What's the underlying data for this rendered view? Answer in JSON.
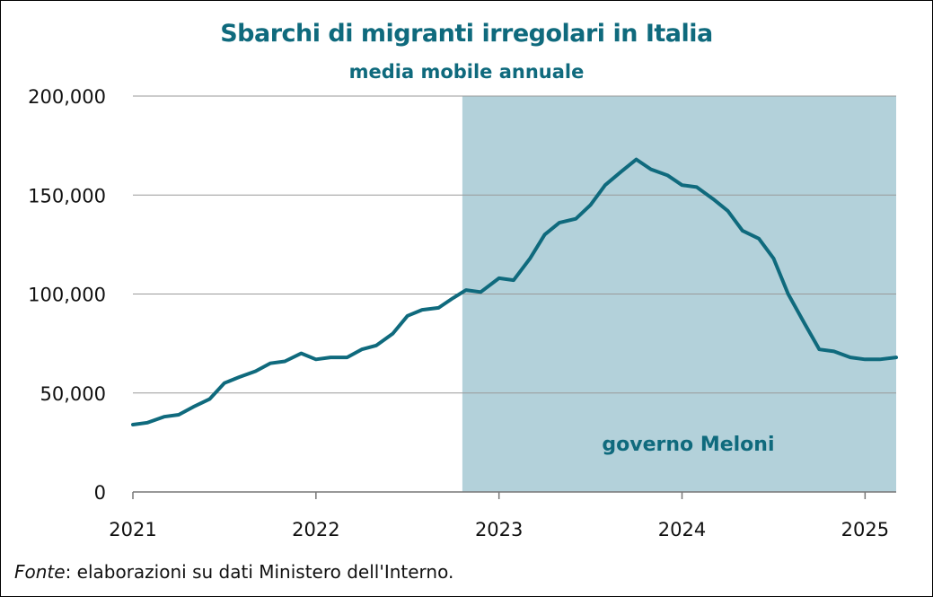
{
  "chart_data": {
    "type": "line",
    "title": "Sbarchi di migranti irregolari in Italia",
    "subtitle": "media mobile annuale",
    "ylim": [
      0,
      200000
    ],
    "y_ticks": [
      "0",
      "50,000",
      "100,000",
      "150,000",
      "200,000"
    ],
    "y_tick_values": [
      0,
      50000,
      100000,
      150000,
      200000
    ],
    "x_ticks": [
      "2021",
      "2022",
      "2023",
      "2024",
      "2025"
    ],
    "x_tick_values": [
      2021,
      2022,
      2023,
      2024,
      2025
    ],
    "xlim": [
      2021,
      2025.17
    ],
    "grid": true,
    "series": [
      {
        "color": "#0f6a7d",
        "x": [
          2021.0,
          2021.08,
          2021.17,
          2021.25,
          2021.33,
          2021.42,
          2021.5,
          2021.58,
          2021.67,
          2021.75,
          2021.83,
          2021.92,
          2022.0,
          2022.08,
          2022.17,
          2022.25,
          2022.33,
          2022.42,
          2022.5,
          2022.58,
          2022.67,
          2022.75,
          2022.82,
          2022.9,
          2023.0,
          2023.08,
          2023.17,
          2023.25,
          2023.33,
          2023.42,
          2023.5,
          2023.58,
          2023.67,
          2023.75,
          2023.83,
          2023.92,
          2024.0,
          2024.08,
          2024.17,
          2024.25,
          2024.33,
          2024.42,
          2024.5,
          2024.58,
          2024.67,
          2024.75,
          2024.83,
          2024.92,
          2025.0,
          2025.08,
          2025.17
        ],
        "values": [
          34000,
          35000,
          38000,
          39000,
          43000,
          47000,
          55000,
          58000,
          61000,
          65000,
          66000,
          70000,
          67000,
          68000,
          68000,
          72000,
          74000,
          80000,
          89000,
          92000,
          93000,
          98000,
          102000,
          101000,
          108000,
          107000,
          118000,
          130000,
          136000,
          138000,
          145000,
          155000,
          162000,
          168000,
          163000,
          160000,
          155000,
          154000,
          148000,
          142000,
          132000,
          128000,
          118000,
          100000,
          85000,
          72000,
          71000,
          68000,
          67000,
          67000,
          68000
        ]
      }
    ],
    "annotations": [
      {
        "text": "governo Meloni",
        "x_start": 2022.8,
        "x_end": 2025.17,
        "band_color": "#b3d1da"
      }
    ]
  },
  "source": {
    "label": "Fonte",
    "text": ": elaborazioni su dati Ministero dell'Interno."
  }
}
